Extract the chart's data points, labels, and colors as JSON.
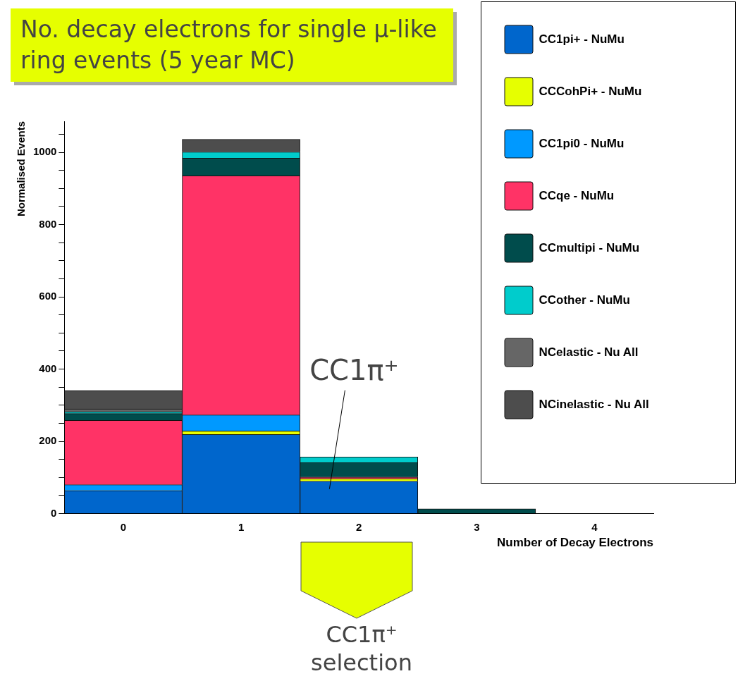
{
  "chart_data": {
    "type": "bar",
    "title": "No. decay electrons for single μ-like ring events (5 year MC)",
    "xlabel": "Number of Decay Electrons",
    "ylabel": "Normalised Events",
    "categories": [
      "0",
      "1",
      "2",
      "3",
      "4"
    ],
    "stacked": true,
    "series": [
      {
        "name": "CC1pi+ - NuMu",
        "color": "#0066cc",
        "values": [
          64,
          219,
          90,
          0,
          0
        ]
      },
      {
        "name": "CCCohPi+ - NuMu",
        "color": "#e6ff00",
        "values": [
          0,
          10,
          7,
          0,
          0
        ]
      },
      {
        "name": "CC1pi0 - NuMu",
        "color": "#0099ff",
        "values": [
          16,
          44,
          0,
          0,
          0
        ]
      },
      {
        "name": "CCqe - NuMu",
        "color": "#ff3366",
        "values": [
          178,
          662,
          4,
          0,
          0
        ]
      },
      {
        "name": "CCmultipi - NuMu",
        "color": "#004c4c",
        "values": [
          19,
          49,
          40,
          13,
          0
        ]
      },
      {
        "name": "CCother - NuMu",
        "color": "#00cccc",
        "values": [
          5,
          17,
          16,
          0,
          0
        ]
      },
      {
        "name": "NCelastic - Nu All",
        "color": "#666666",
        "values": [
          8,
          0,
          0,
          0,
          0
        ]
      },
      {
        "name": "NCinelastic - Nu All",
        "color": "#4d4d4d",
        "values": [
          51,
          35,
          0,
          0,
          0
        ]
      }
    ],
    "ylim": [
      0,
      1086
    ],
    "yticks": [
      0,
      {
        "value": 50,
        "label": null
      },
      {
        "value": 100,
        "label": null
      },
      {
        "value": 150,
        "label": null
      },
      200,
      {
        "value": 250,
        "label": null
      },
      {
        "value": 300,
        "label": null
      },
      {
        "value": 350,
        "label": null
      },
      400,
      {
        "value": 450,
        "label": null
      },
      {
        "value": 500,
        "label": null
      },
      {
        "value": 550,
        "label": null
      },
      600,
      {
        "value": 650,
        "label": null
      },
      {
        "value": 700,
        "label": null
      },
      {
        "value": 750,
        "label": null
      },
      800,
      {
        "value": 850,
        "label": null
      },
      {
        "value": 900,
        "label": null
      },
      {
        "value": 950,
        "label": null
      },
      1000,
      {
        "value": 1050,
        "label": null
      }
    ],
    "grid": false,
    "legend": "top right",
    "annotations": [
      "CC1π⁺",
      "CC1π⁺ selection"
    ]
  }
}
